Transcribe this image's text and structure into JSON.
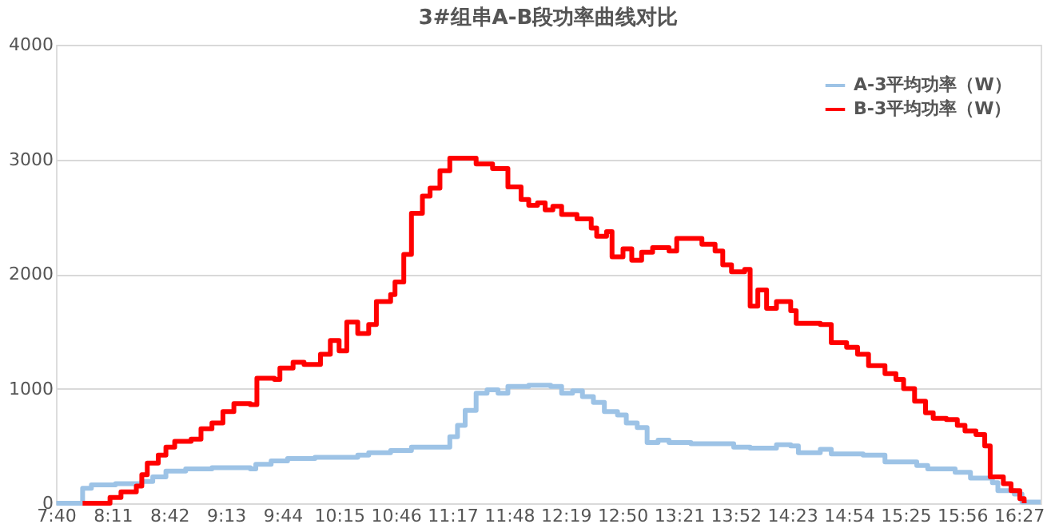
{
  "chart_data": {
    "type": "step",
    "title": "3#组串A-B段功率曲线对比",
    "xlim": [
      7.6667,
      16.65
    ],
    "xticks": [
      {
        "value": 7.6667,
        "label": "7:40"
      },
      {
        "value": 8.1833,
        "label": "8:11"
      },
      {
        "value": 8.7,
        "label": "8:42"
      },
      {
        "value": 9.2167,
        "label": "9:13"
      },
      {
        "value": 9.7333,
        "label": "9:44"
      },
      {
        "value": 10.25,
        "label": "10:15"
      },
      {
        "value": 10.7667,
        "label": "10:46"
      },
      {
        "value": 11.2833,
        "label": "11:17"
      },
      {
        "value": 11.8,
        "label": "11:48"
      },
      {
        "value": 12.3167,
        "label": "12:19"
      },
      {
        "value": 12.8333,
        "label": "12:50"
      },
      {
        "value": 13.35,
        "label": "13:21"
      },
      {
        "value": 13.8667,
        "label": "13:52"
      },
      {
        "value": 14.3833,
        "label": "14:23"
      },
      {
        "value": 14.9,
        "label": "14:54"
      },
      {
        "value": 15.4167,
        "label": "15:25"
      },
      {
        "value": 15.9333,
        "label": "15:56"
      },
      {
        "value": 16.45,
        "label": "16:27"
      }
    ],
    "ylim": [
      0,
      4000
    ],
    "yticks": [
      0,
      1000,
      2000,
      3000,
      4000
    ],
    "grid": "y",
    "legend": "top right",
    "line_style": "solid",
    "marker": "none",
    "series": [
      {
        "name": "A-3平均功率（W）",
        "color": "#9dc3e6",
        "x": [
          7.67,
          7.89,
          7.91,
          7.99,
          8.21,
          8.45,
          8.55,
          8.67,
          8.85,
          9.09,
          9.44,
          9.49,
          9.63,
          9.78,
          10.03,
          10.42,
          10.52,
          10.72,
          10.91,
          11.21,
          11.26,
          11.33,
          11.4,
          11.5,
          11.6,
          11.7,
          11.79,
          11.98,
          12.18,
          12.28,
          12.38,
          12.47,
          12.57,
          12.67,
          12.79,
          12.87,
          12.97,
          13.06,
          13.16,
          13.26,
          13.46,
          13.65,
          13.85,
          14.0,
          14.24,
          14.37,
          14.44,
          14.64,
          14.74,
          15.03,
          15.23,
          15.52,
          15.62,
          15.87,
          16.01,
          16.21,
          16.26,
          16.41,
          16.48,
          16.65
        ],
        "values": [
          0,
          0,
          130,
          160,
          170,
          190,
          230,
          280,
          300,
          310,
          300,
          340,
          370,
          390,
          400,
          420,
          440,
          460,
          490,
          490,
          580,
          680,
          810,
          960,
          990,
          960,
          1020,
          1030,
          1020,
          960,
          980,
          930,
          880,
          800,
          770,
          700,
          660,
          530,
          550,
          530,
          520,
          520,
          490,
          480,
          510,
          500,
          440,
          470,
          430,
          420,
          360,
          330,
          300,
          270,
          220,
          180,
          110,
          80,
          10,
          10
        ]
      },
      {
        "name": "B-3平均功率（W）",
        "color": "#ff0000",
        "x": [
          7.91,
          8.16,
          8.26,
          8.4,
          8.45,
          8.5,
          8.6,
          8.67,
          8.75,
          8.9,
          8.99,
          9.09,
          9.19,
          9.29,
          9.44,
          9.5,
          9.66,
          9.71,
          9.83,
          9.93,
          10.08,
          10.17,
          10.25,
          10.32,
          10.42,
          10.52,
          10.59,
          10.72,
          10.76,
          10.84,
          10.91,
          11.01,
          11.08,
          11.17,
          11.26,
          11.4,
          11.5,
          11.65,
          11.79,
          11.91,
          11.98,
          12.06,
          12.13,
          12.2,
          12.28,
          12.42,
          12.55,
          12.6,
          12.69,
          12.74,
          12.84,
          12.92,
          13.01,
          13.11,
          13.26,
          13.33,
          13.46,
          13.56,
          13.68,
          13.75,
          13.83,
          13.95,
          14.0,
          14.07,
          14.15,
          14.24,
          14.37,
          14.42,
          14.64,
          14.74,
          14.88,
          14.98,
          15.08,
          15.23,
          15.33,
          15.4,
          15.5,
          15.6,
          15.67,
          15.79,
          15.89,
          15.96,
          16.06,
          16.14,
          16.19,
          16.31,
          16.38,
          16.46,
          16.5
        ],
        "values": [
          0,
          50,
          100,
          150,
          250,
          350,
          420,
          490,
          540,
          560,
          650,
          700,
          800,
          870,
          860,
          1090,
          1080,
          1180,
          1230,
          1210,
          1300,
          1420,
          1330,
          1580,
          1480,
          1560,
          1760,
          1820,
          1930,
          2170,
          2530,
          2680,
          2750,
          2900,
          3010,
          3010,
          2960,
          2920,
          2760,
          2650,
          2600,
          2620,
          2560,
          2590,
          2520,
          2480,
          2400,
          2330,
          2370,
          2150,
          2220,
          2120,
          2190,
          2230,
          2200,
          2310,
          2310,
          2260,
          2200,
          2080,
          2020,
          2040,
          1720,
          1860,
          1700,
          1760,
          1680,
          1570,
          1560,
          1400,
          1360,
          1300,
          1200,
          1130,
          1080,
          1000,
          890,
          790,
          740,
          730,
          680,
          630,
          600,
          500,
          230,
          170,
          110,
          40,
          0
        ]
      }
    ]
  }
}
